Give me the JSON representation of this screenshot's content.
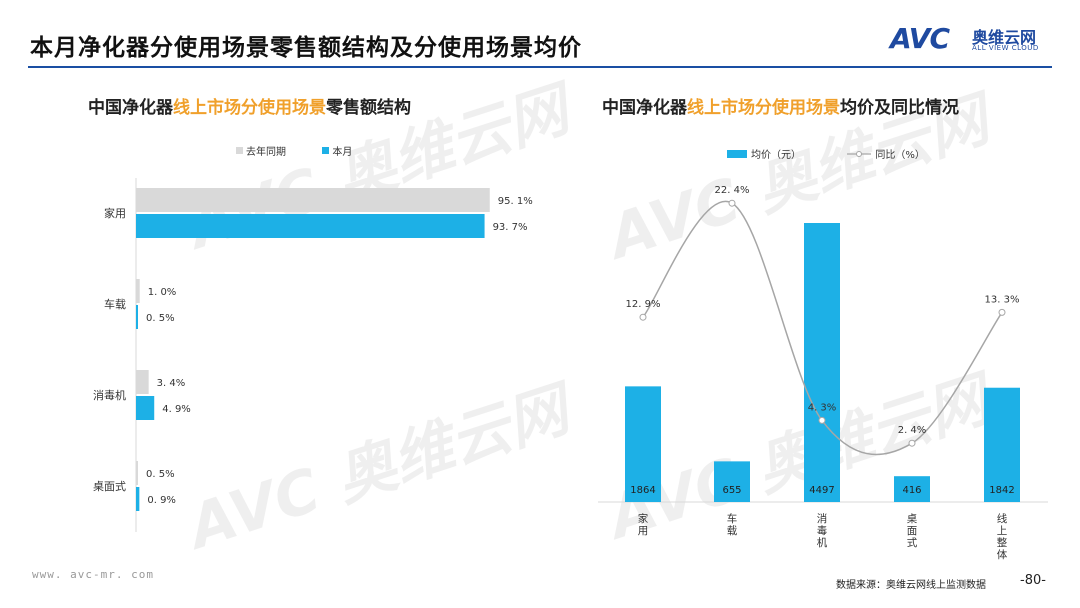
{
  "header": {
    "title": "本月净化器分使用场景零售额结构及分使用场景均价",
    "logo_text": "AVC",
    "logo_cn": "奥维云网",
    "logo_en": "ALL VIEW CLOUD"
  },
  "colors": {
    "blue": "#1db0e6",
    "gray": "#d9d9d9",
    "line": "#a6a6a6",
    "accent": "#f0a02b",
    "brand": "#1f4aa0"
  },
  "left_chart": {
    "title_pre": "中国净化器",
    "title_hl": "线上市场分使用场景",
    "title_post": "零售额结构"
  },
  "right_chart": {
    "title_pre": "中国净化器",
    "title_hl": "线上市场分使用场景",
    "title_post": "均价及同比情况"
  },
  "chart_data": [
    {
      "type": "bar",
      "orientation": "horizontal",
      "categories": [
        "家用",
        "车载",
        "消毒机",
        "桌面式"
      ],
      "series": [
        {
          "name": "去年同期",
          "values": [
            95.1,
            1.0,
            3.4,
            0.5
          ],
          "labels": [
            "95. 1%",
            "1. 0%",
            "3. 4%",
            "0. 5%"
          ]
        },
        {
          "name": "本月",
          "values": [
            93.7,
            0.5,
            4.9,
            0.9
          ],
          "labels": [
            "93. 7%",
            "0. 5%",
            "4. 9%",
            "0. 9%"
          ]
        }
      ],
      "xlim": [
        0,
        100
      ],
      "legend": "top-center",
      "grid": false
    },
    {
      "type": "bar+line",
      "categories": [
        "家用",
        "车载",
        "消毒机",
        "桌面式",
        "线上整体"
      ],
      "series": [
        {
          "name": "均价（元）",
          "type": "bar",
          "values": [
            1864,
            655,
            4497,
            416,
            1842
          ]
        },
        {
          "name": "同比（%）",
          "type": "line",
          "values": [
            12.9,
            22.4,
            4.3,
            2.4,
            13.3
          ],
          "labels": [
            "12. 9%",
            "22. 4%",
            "4. 3%",
            "2. 4%",
            "13. 3%"
          ]
        }
      ],
      "ylim_bar": [
        0,
        5000
      ],
      "ylim_line": [
        0,
        25
      ],
      "legend": "top-center",
      "grid": false
    }
  ],
  "footer": {
    "url": "www. avc-mr. com",
    "source": "数据来源：奥维云网线上监测数据",
    "page": "-80-"
  }
}
